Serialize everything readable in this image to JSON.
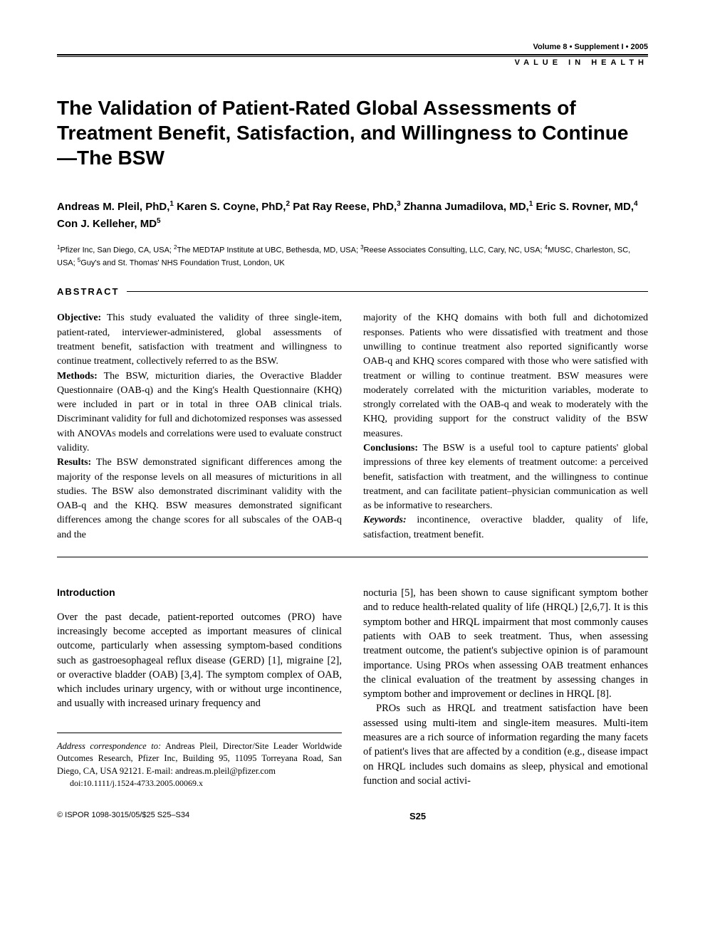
{
  "header": {
    "issue": "Volume 8 • Supplement I • 2005",
    "journal": "VALUE IN HEALTH"
  },
  "title": "The Validation of Patient-Rated Global Assessments of Treatment Benefit, Satisfaction, and Willingness to Continue—The BSW",
  "authors_html": "Andreas M. Pleil, PhD,<sup>1</sup> Karen S. Coyne, PhD,<sup>2</sup> Pat Ray Reese, PhD,<sup>3</sup> Zhanna Jumadilova, MD,<sup>1</sup> Eric S. Rovner, MD,<sup>4</sup> Con J. Kelleher, MD<sup>5</sup>",
  "affiliations_html": "<sup>1</sup>Pfizer Inc, San Diego, CA, USA; <sup>2</sup>The MEDTAP Institute at UBC, Bethesda, MD, USA; <sup>3</sup>Reese Associates Consulting, LLC, Cary, NC, USA; <sup>4</sup>MUSC, Charleston, SC, USA; <sup>5</sup>Guy's and St. Thomas' NHS Foundation Trust, London, UK",
  "abstract": {
    "label": "ABSTRACT",
    "left_html": "<span class=\"bold\">Objective:</span> This study evaluated the validity of three single-item, patient-rated, interviewer-administered, global assessments of treatment benefit, satisfaction with treatment and willingness to continue treatment, collectively referred to as the BSW.<br><span class=\"bold\">Methods:</span> The BSW, micturition diaries, the Overactive Bladder Questionnaire (OAB-q) and the King's Health Questionnaire (KHQ) were included in part or in total in three OAB clinical trials. Discriminant validity for full and dichotomized responses was assessed with <span class=\"smallcaps\">ANOVAs</span> models and correlations were used to evaluate construct validity.<br><span class=\"bold\">Results:</span> The BSW demonstrated significant differences among the majority of the response levels on all measures of micturitions in all studies. The BSW also demonstrated discriminant validity with the OAB-q and the KHQ. BSW measures demonstrated significant differences among the change scores for all subscales of the OAB-q and the",
    "right_html": "majority of the KHQ domains with both full and dichotomized responses. Patients who were dissatisfied with treatment and those unwilling to continue treatment also reported significantly worse OAB-q and KHQ scores compared with those who were satisfied with treatment or willing to continue treatment. BSW measures were moderately correlated with the micturition variables, moderate to strongly correlated with the OAB-q and weak to moderately with the KHQ, providing support for the construct validity of the BSW measures.<br><span class=\"bold\">Conclusions:</span> The BSW is a useful tool to capture patients' global impressions of three key elements of treatment outcome: a perceived benefit, satisfaction with treatment, and the willingness to continue treatment, and can facilitate patient–physician communication as well as be informative to researchers.<br><span class=\"italic bold\">Keywords:</span> incontinence, overactive bladder, quality of life, satisfaction, treatment benefit."
  },
  "intro": {
    "heading": "Introduction",
    "left_p1": "Over the past decade, patient-reported outcomes (PRO) have increasingly become accepted as important measures of clinical outcome, particularly when assessing symptom-based conditions such as gastroesophageal reflux disease (GERD) [1], migraine [2], or overactive bladder (OAB) [3,4]. The symptom complex of OAB, which includes urinary urgency, with or without urge incontinence, and usually with increased urinary frequency and",
    "right_p1": "nocturia [5], has been shown to cause significant symptom bother and to reduce health-related quality of life (HRQL) [2,6,7]. It is this symptom bother and HRQL impairment that most commonly causes patients with OAB to seek treatment. Thus, when assessing treatment outcome, the patient's subjective opinion is of paramount importance. Using PROs when assessing OAB treatment enhances the clinical evaluation of the treatment by assessing changes in symptom bother and improvement or declines in HRQL [8].",
    "right_p2": "PROs such as HRQL and treatment satisfaction have been assessed using multi-item and single-item measures. Multi-item measures are a rich source of information regarding the many facets of patient's lives that are affected by a condition (e.g., disease impact on HRQL includes such domains as sleep, physical and emotional function and social activi-"
  },
  "correspondence_html": "<span class=\"italic\">Address correspondence to:</span> Andreas Pleil, Director/Site Leader Worldwide Outcomes Research, Pfizer Inc, Building 95, 11095 Torreyana Road, San Diego, CA, USA 92121. E-mail: andreas.m.pleil@pfizer.com",
  "doi": "doi:10.1111/j.1524-4733.2005.00069.x",
  "footer": {
    "copyright": "© ISPOR 1098-3015/05/$25  S25–S34",
    "page": "S25"
  }
}
